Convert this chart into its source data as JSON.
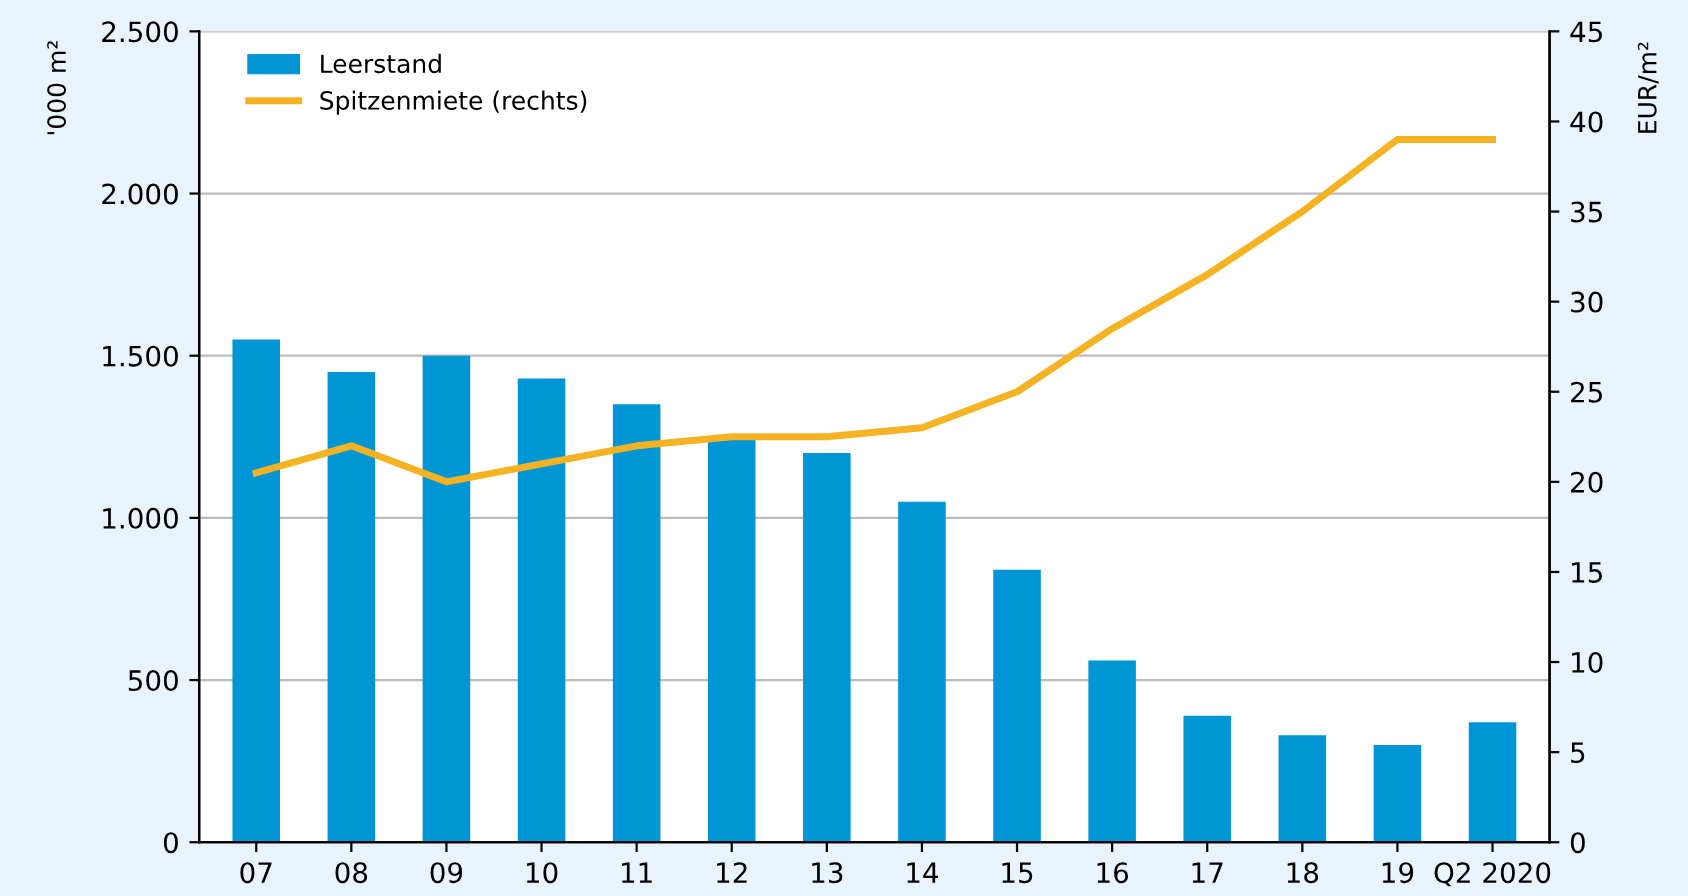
{
  "chart_data": {
    "type": "bar",
    "categories": [
      "07",
      "08",
      "09",
      "10",
      "11",
      "12",
      "13",
      "14",
      "15",
      "16",
      "17",
      "18",
      "19",
      "Q2 2020"
    ],
    "ylabel": "'000 m²",
    "y2label": "EUR/m²",
    "series": [
      {
        "name": "Leerstand",
        "color": "#0095d5",
        "values": [
          1550,
          1450,
          1500,
          1430,
          1350,
          1240,
          1200,
          1050,
          840,
          560,
          390,
          330,
          300,
          370
        ]
      },
      {
        "name": "Spitzenmiete (rechts)",
        "type": "line",
        "axis": "y2",
        "color": "#f5b324",
        "values": [
          20.5,
          22,
          20,
          21,
          22,
          22.5,
          22.5,
          23,
          25,
          28.5,
          31.5,
          35,
          39,
          39
        ]
      }
    ],
    "ylim": [
      0,
      2500
    ],
    "yticks": [
      0,
      500,
      {
        "value": 1000,
        "label": "1.000"
      },
      {
        "value": 1500,
        "label": "1.500"
      },
      {
        "value": 2000,
        "label": "2.000"
      },
      {
        "value": 2500,
        "label": "2.500"
      }
    ],
    "y2lim": [
      0,
      45
    ],
    "y2ticks": [
      0,
      5,
      10,
      15,
      20,
      25,
      30,
      35,
      40,
      45
    ],
    "grid": "y",
    "legend": "top left",
    "marker": "none",
    "line_style": "solid"
  }
}
